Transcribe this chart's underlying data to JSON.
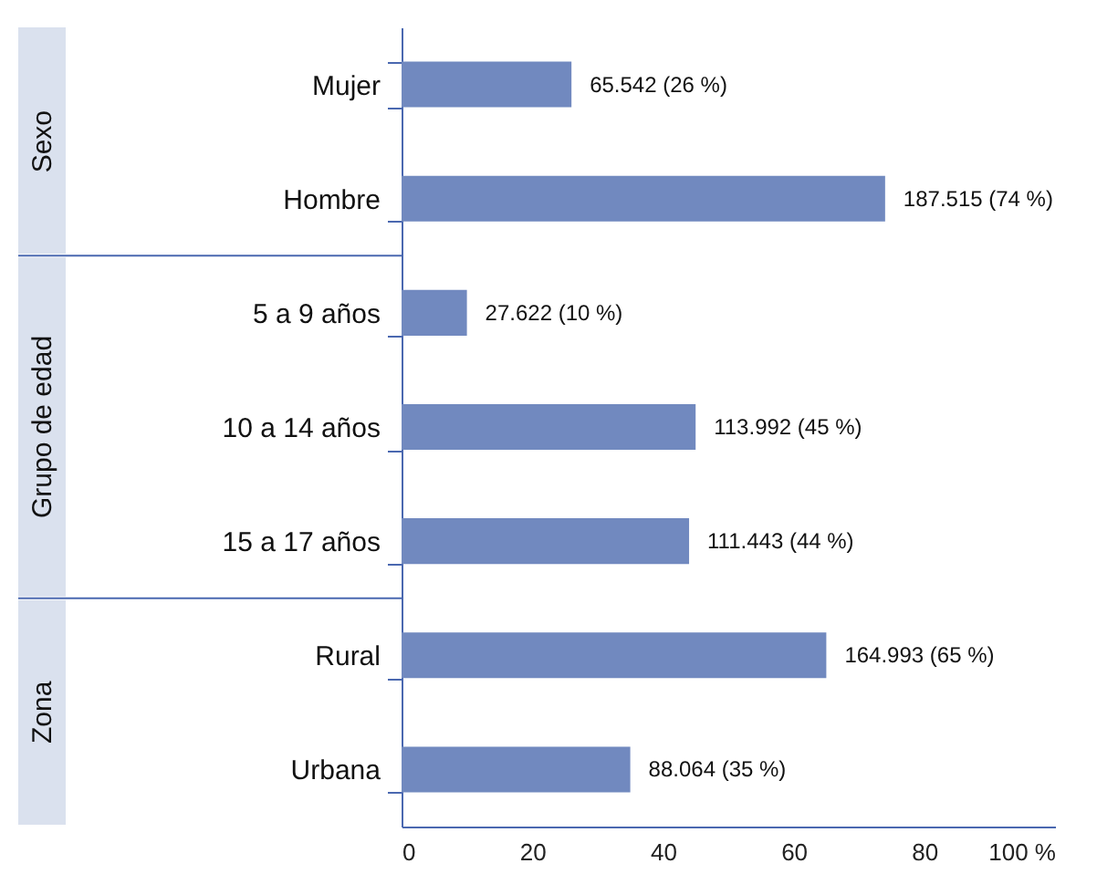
{
  "chart_data": {
    "type": "bar",
    "orientation": "horizontal",
    "categories": [
      "Mujer",
      "Hombre",
      "5 a 9 años",
      "10 a 14 años",
      "15 a 17 años",
      "Rural",
      "Urbana"
    ],
    "values": [
      26,
      74,
      10,
      45,
      44,
      65,
      35
    ],
    "value_labels": [
      "65.542 (26 %)",
      "187.515 (74 %)",
      "27.622 (10 %)",
      "113.992 (45 %)",
      "111.443 (44 %)",
      "164.993 (65 %)",
      "88.064 (35 %)"
    ],
    "color": "#7189bf",
    "xlim": [
      0,
      100
    ],
    "xticks": [
      0,
      20,
      40,
      60,
      80,
      {
        "value": 100,
        "label": "100 %"
      }
    ],
    "annotations": [
      "Sexo",
      "Grupo de edad",
      "Zona"
    ],
    "grid": false
  }
}
